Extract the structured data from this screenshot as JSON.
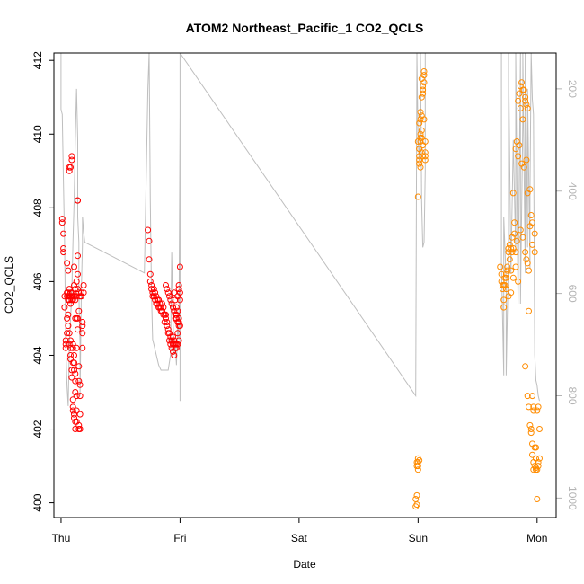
{
  "chart_data": {
    "type": "scatter",
    "title": "ATOM2 Northeast_Pacific_1 CO2_QCLS",
    "xlabel": "Date",
    "ylabel": "CO2_QCLS",
    "x_ticks": [
      "Thu",
      "Fri",
      "Sat",
      "Sun",
      "Mon"
    ],
    "xlim": [
      -0.06,
      4.16
    ],
    "ylim": [
      399.6,
      412.2
    ],
    "y_ticks": [
      400,
      402,
      404,
      406,
      408,
      410,
      412
    ],
    "y2_ticks": [
      200,
      400,
      600,
      800,
      1000
    ],
    "y2lim": [
      1038,
      130
    ],
    "grid": false,
    "colors": {
      "day1": "#ff0000",
      "day2": "#ff8c00",
      "pressure_line": "#bebebe",
      "axis": "#000000",
      "axis2": "#b4b4b4"
    },
    "series": [
      {
        "color": "#ff0000",
        "x": [
          0.01,
          0.01,
          0.02,
          0.02,
          0.02,
          0.03,
          0.03,
          0.04,
          0.04,
          0.04,
          0.05,
          0.05,
          0.05,
          0.05,
          0.06,
          0.06,
          0.06,
          0.06,
          0.06,
          0.07,
          0.07,
          0.07,
          0.07,
          0.07,
          0.08,
          0.08,
          0.08,
          0.08,
          0.08,
          0.09,
          0.09,
          0.09,
          0.09,
          0.09,
          0.1,
          0.1,
          0.1,
          0.1,
          0.1,
          0.11,
          0.11,
          0.11,
          0.11,
          0.11,
          0.12,
          0.12,
          0.12,
          0.12,
          0.12,
          0.13,
          0.13,
          0.13,
          0.13,
          0.13,
          0.14,
          0.14,
          0.14,
          0.14,
          0.15,
          0.15,
          0.15,
          0.15,
          0.16,
          0.16,
          0.16,
          0.17,
          0.17,
          0.18,
          0.18,
          0.18,
          0.18,
          0.19,
          0.19,
          0.13,
          0.13,
          0.14,
          0.14,
          0.05,
          0.06,
          0.07,
          0.08,
          0.15,
          0.16,
          0.16,
          0.11,
          0.12,
          0.14,
          0.15,
          0.07,
          0.08,
          0.08,
          0.09,
          0.09,
          0.1,
          0.1,
          0.1,
          0.11,
          0.11,
          0.12,
          0.12
        ],
        "y": [
          407.7,
          407.6,
          407.3,
          406.9,
          406.8,
          405.6,
          405.3,
          404.4,
          404.3,
          404.2,
          405.7,
          405.6,
          405.0,
          404.6,
          405.7,
          405.6,
          405.5,
          405.1,
          404.8,
          409.1,
          409.0,
          405.8,
          405.6,
          405.5,
          409.1,
          405.7,
          405.6,
          405.4,
          404.4,
          409.4,
          409.3,
          405.7,
          405.6,
          405.5,
          405.6,
          405.5,
          404.3,
          404.2,
          403.8,
          405.9,
          405.6,
          404.0,
          403.8,
          403.6,
          405.5,
          405.0,
          403.5,
          403.3,
          403.0,
          405.6,
          405.0,
          402.9,
          402.5,
          402.2,
          408.2,
          408.2,
          406.7,
          406.2,
          405.7,
          405.2,
          402.1,
          402.0,
          405.6,
          402.4,
          402.0,
          405.7,
          405.6,
          404.9,
          404.8,
          404.6,
          404.2,
          405.9,
          405.7,
          406.0,
          404.2,
          405.8,
          405.0,
          406.5,
          406.3,
          404.3,
          403.9,
          403.7,
          403.2,
          402.9,
          406.4,
          405.8,
          404.7,
          403.3,
          404.6,
          404.2,
          404.0,
          403.6,
          403.4,
          402.8,
          402.6,
          402.5,
          402.4,
          402.3,
          402.2,
          402.0
        ]
      },
      {
        "color": "#ff0000",
        "x": [
          0.73,
          0.74,
          0.74,
          0.75,
          0.75,
          0.76,
          0.76,
          0.77,
          0.77,
          0.78,
          0.78,
          0.79,
          0.79,
          0.8,
          0.8,
          0.81,
          0.81,
          0.82,
          0.82,
          0.83,
          0.83,
          0.84,
          0.84,
          0.85,
          0.85,
          0.86,
          0.86,
          0.87,
          0.87,
          0.88,
          0.88,
          0.89,
          0.89,
          0.9,
          0.9,
          0.91,
          0.91,
          0.92,
          0.92,
          0.93,
          0.93,
          0.94,
          0.94,
          0.95,
          0.95,
          0.96,
          0.96,
          0.97,
          0.97,
          0.98,
          0.98,
          0.99,
          0.99,
          1.0,
          1.0,
          1.0,
          0.95,
          0.96,
          0.97,
          0.98,
          0.99,
          1.0,
          0.94,
          0.95,
          0.96,
          0.97,
          0.98,
          0.99,
          0.88,
          0.89,
          0.9,
          0.91,
          0.92,
          0.93,
          0.94,
          0.95,
          0.96,
          0.97,
          0.98,
          0.99,
          0.99
        ],
        "y": [
          407.4,
          407.1,
          406.6,
          406.2,
          406.0,
          405.9,
          405.8,
          405.7,
          405.6,
          405.8,
          405.6,
          405.7,
          405.5,
          405.6,
          405.4,
          405.5,
          405.4,
          405.5,
          405.3,
          405.4,
          405.3,
          405.3,
          405.2,
          405.4,
          405.2,
          405.3,
          405.1,
          405.1,
          404.9,
          405.1,
          405.0,
          404.9,
          404.8,
          404.7,
          404.6,
          404.6,
          404.4,
          404.5,
          404.3,
          404.4,
          404.2,
          404.3,
          404.1,
          404.3,
          404.0,
          405.0,
          404.3,
          405.1,
          404.2,
          405.6,
          404.3,
          405.9,
          404.4,
          406.4,
          405.7,
          404.8,
          405.7,
          405.5,
          405.3,
          405.2,
          405.0,
          405.5,
          404.5,
          404.4,
          404.2,
          404.3,
          404.6,
          404.9,
          405.9,
          405.8,
          405.7,
          405.6,
          405.5,
          405.4,
          405.3,
          405.2,
          405.1,
          405.0,
          404.9,
          404.8,
          405.8
        ]
      },
      {
        "color": "#ff8c00",
        "x": [
          2.98,
          2.98,
          2.99,
          2.99,
          2.99,
          3.0,
          3.0,
          3.0,
          3.0,
          3.01,
          3.01,
          3.01,
          3.01,
          3.02,
          3.02,
          3.02,
          3.03,
          3.03,
          3.03,
          3.04,
          3.04,
          3.04,
          3.05,
          3.05,
          3.05,
          3.06,
          3.06,
          2.99,
          3.0,
          3.0,
          3.01,
          3.01,
          3.02,
          3.02,
          3.03,
          3.03,
          3.04,
          3.04,
          3.01,
          3.02,
          3.03,
          3.04,
          3.05,
          3.06,
          3.06
        ],
        "y": [
          400.1,
          399.9,
          400.2,
          401.1,
          401.0,
          401.2,
          401.1,
          400.9,
          408.3,
          409.4,
          409.3,
          409.2,
          409.6,
          409.9,
          409.8,
          410.0,
          410.1,
          410.5,
          409.5,
          411.1,
          411.2,
          411.2,
          411.4,
          411.6,
          411.7,
          409.5,
          409.4,
          399.95,
          401.0,
          409.8,
          409.6,
          410.3,
          410.6,
          410.4,
          411.5,
          411.0,
          409.7,
          409.4,
          401.15,
          409.1,
          409.9,
          411.3,
          410.4,
          409.8,
          409.3
        ]
      },
      {
        "color": "#ff8c00",
        "x": [
          3.69,
          3.7,
          3.7,
          3.71,
          3.71,
          3.72,
          3.72,
          3.73,
          3.73,
          3.74,
          3.74,
          3.75,
          3.75,
          3.76,
          3.76,
          3.77,
          3.77,
          3.78,
          3.78,
          3.79,
          3.79,
          3.8,
          3.8,
          3.81,
          3.81,
          3.82,
          3.82,
          3.83,
          3.83,
          3.84,
          3.84,
          3.85,
          3.85,
          3.86,
          3.86,
          3.87,
          3.87,
          3.88,
          3.88,
          3.89,
          3.89,
          3.9,
          3.9,
          3.91,
          3.91,
          3.92,
          3.92,
          3.93,
          3.93,
          3.94,
          3.94,
          3.95,
          3.95,
          3.96,
          3.96,
          3.97,
          3.97,
          3.98,
          3.98,
          3.99,
          3.99,
          4.0,
          4.0,
          4.01,
          4.01,
          4.02,
          4.02,
          3.72,
          3.74,
          3.76,
          3.78,
          3.8,
          3.82,
          3.84,
          3.86,
          3.88,
          3.9,
          3.92,
          3.94,
          3.96,
          3.98,
          3.98,
          3.97,
          3.97,
          3.96,
          3.99,
          4.0,
          3.99,
          4.01,
          3.95,
          3.96,
          3.9,
          3.91,
          3.92,
          3.93
        ],
        "y": [
          406.4,
          406.2,
          406.0,
          405.9,
          405.8,
          405.5,
          405.3,
          406.1,
          405.9,
          406.2,
          406.1,
          406.4,
          406.3,
          406.9,
          406.8,
          407.0,
          406.6,
          406.9,
          406.3,
          407.2,
          406.8,
          408.4,
          406.9,
          407.3,
          407.6,
          409.6,
          406.8,
          409.8,
          407.1,
          410.9,
          409.4,
          411.1,
          409.7,
          411.3,
          410.7,
          411.4,
          409.2,
          411.2,
          410.4,
          411.2,
          409.1,
          411.0,
          410.9,
          410.8,
          409.3,
          410.7,
          402.9,
          405.2,
          402.6,
          408.5,
          402.1,
          402.0,
          401.9,
          401.6,
          401.3,
          401.1,
          400.9,
          401.5,
          401.0,
          400.9,
          401.2,
          400.1,
          402.5,
          402.6,
          401.1,
          402.0,
          401.2,
          405.9,
          405.8,
          405.6,
          405.7,
          406.1,
          406.4,
          406.0,
          407.4,
          407.2,
          403.7,
          408.4,
          407.5,
          407.0,
          407.3,
          406.8,
          402.5,
          402.6,
          402.9,
          401.5,
          400.9,
          400.95,
          401.0,
          407.8,
          407.6,
          406.8,
          406.6,
          406.5,
          406.3
        ]
      }
    ],
    "pressure_line": {
      "color": "#bebebe",
      "x": [
        0.0,
        0.0,
        0.0,
        0.01,
        0.02,
        0.03,
        0.04,
        0.05,
        0.06,
        0.07,
        0.08,
        0.09,
        0.1,
        0.11,
        0.12,
        0.13,
        0.13,
        0.14,
        0.14,
        0.15,
        0.15,
        0.16,
        0.16,
        0.17,
        0.18,
        0.18,
        0.19,
        0.2,
        0.7,
        0.72,
        0.73,
        0.74,
        0.74,
        0.75,
        0.76,
        0.77,
        0.78,
        0.8,
        0.82,
        0.84,
        0.86,
        0.88,
        0.9,
        0.92,
        0.93,
        0.94,
        0.95,
        0.96,
        0.97,
        0.98,
        0.99,
        1.0,
        1.0,
        1.0,
        1.0,
        2.98,
        2.99,
        3.0,
        3.01,
        3.02,
        3.02,
        3.03,
        3.04,
        3.05,
        3.06,
        3.06,
        3.7,
        3.7,
        3.72,
        3.72,
        3.74,
        3.74,
        3.76,
        3.76,
        3.78,
        3.8,
        3.82,
        3.82,
        3.84,
        3.86,
        3.86,
        3.88,
        3.88,
        3.9,
        3.9,
        3.92,
        3.92,
        3.94,
        3.94,
        3.95,
        3.96,
        3.97,
        3.98,
        3.99,
        4.0,
        4.01,
        4.02
      ],
      "y": [
        130,
        150,
        240,
        250,
        380,
        500,
        700,
        780,
        820,
        700,
        650,
        600,
        500,
        420,
        300,
        200,
        200,
        300,
        450,
        500,
        600,
        700,
        800,
        600,
        500,
        450,
        480,
        500,
        560,
        320,
        200,
        130,
        130,
        420,
        600,
        690,
        700,
        720,
        740,
        750,
        750,
        750,
        750,
        720,
        520,
        650,
        720,
        700,
        740,
        660,
        690,
        250,
        130,
        810,
        130,
        800,
        130,
        300,
        340,
        200,
        130,
        420,
        510,
        500,
        360,
        130,
        130,
        540,
        760,
        450,
        580,
        760,
        520,
        130,
        560,
        300,
        520,
        130,
        620,
        130,
        620,
        260,
        130,
        560,
        130,
        510,
        200,
        550,
        400,
        130,
        220,
        250,
        720,
        770,
        780,
        800,
        810
      ]
    }
  }
}
